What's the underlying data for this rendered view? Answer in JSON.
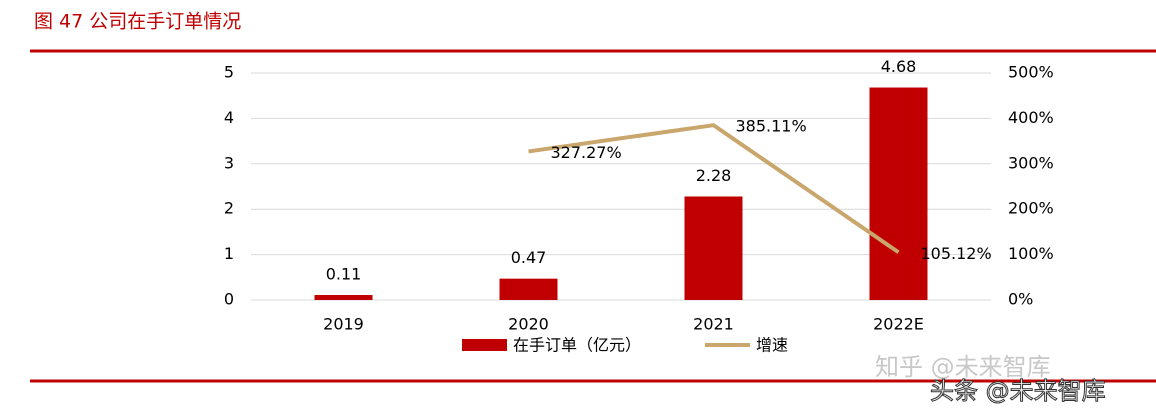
{
  "chart_data": {
    "type": "bar",
    "title": "图 47 公司在手订单情况",
    "categories": [
      "2019",
      "2020",
      "2021",
      "2022E"
    ],
    "series": [
      {
        "name": "在手订单（亿元）",
        "type": "bar",
        "color": "#c00000",
        "values": [
          0.11,
          0.47,
          2.28,
          4.68
        ]
      },
      {
        "name": "增速",
        "type": "line",
        "axis": "y2",
        "color": "#c9a66b",
        "values": [
          null,
          327.27,
          385.11,
          105.12
        ],
        "value_labels": [
          null,
          "327.27%",
          "385.11%",
          "105.12%"
        ]
      }
    ],
    "ylim": [
      0,
      5
    ],
    "yticks": [
      0,
      1,
      2,
      3,
      4,
      5
    ],
    "y2lim": [
      0,
      500
    ],
    "y2ticks": [
      {
        "value": 0,
        "label": "0%"
      },
      {
        "value": 100,
        "label": "100%"
      },
      {
        "value": 200,
        "label": "200%"
      },
      {
        "value": 300,
        "label": "300%"
      },
      {
        "value": 400,
        "label": "400%"
      },
      {
        "value": 500,
        "label": "500%"
      }
    ],
    "grid": true
  },
  "watermarks": [
    "知乎 @未来智库",
    "头条 @未来智库"
  ]
}
